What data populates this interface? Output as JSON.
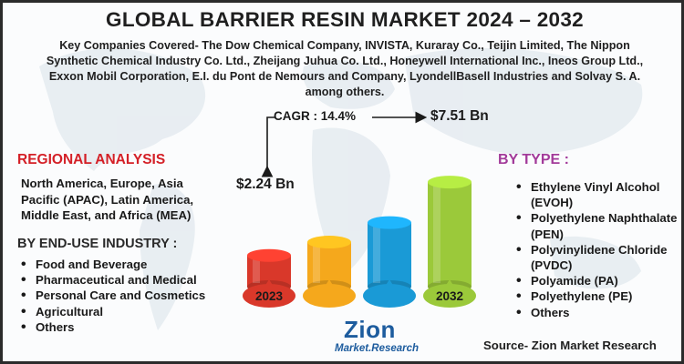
{
  "title": "GLOBAL BARRIER RESIN MARKET 2024 – 2032",
  "companies_line1": "Key Companies Covered- The Dow Chemical Company, INVISTA, Kuraray Co., Teijin Limited, The Nippon",
  "companies_line2": "Synthetic Chemical Industry Co. Ltd., Zheijang Juhua Co. Ltd., Honeywell International Inc., Ineos Group Ltd.,",
  "companies_line3": "Exxon Mobil Corporation, E.I. du Pont de Nemours and Company, LyondellBasell Industries and Solvay S. A.",
  "companies_line4": "among others.",
  "regional_analysis": {
    "heading": "REGIONAL ANALYSIS",
    "text": "North America, Europe, Asia Pacific (APAC), Latin America, Middle East, and Africa (MEA)"
  },
  "end_use": {
    "heading": "BY END-USE INDUSTRY :",
    "items": [
      "Food and Beverage",
      "Pharmaceutical and Medical",
      "Personal Care and Cosmetics",
      "Agricultural",
      "Others"
    ]
  },
  "by_type": {
    "heading": "BY TYPE :",
    "items": [
      "Ethylene Vinyl Alcohol (EVOH)",
      "Polyethylene Naphthalate (PEN)",
      "Polyvinylidene Chloride (PVDC)",
      "Polyamide (PA)",
      "Polyethylene (PE)",
      "Others"
    ]
  },
  "source": "Source- Zion Market Research",
  "logo": {
    "name": "Zion",
    "sub": "Market.Research"
  },
  "colors": {
    "regional_heading": "#d42027",
    "type_heading": "#a23a9a",
    "bars": [
      "#d9382a",
      "#f5a81c",
      "#1a9ad6",
      "#9bc93a"
    ],
    "logo": "#1d5c9e"
  },
  "chart_data": {
    "type": "bar",
    "categories": [
      "2023",
      "",
      "",
      "2032"
    ],
    "values": [
      2.24,
      3.2,
      4.6,
      7.51
    ],
    "value_labels": [
      "$2.24 Bn",
      "",
      "",
      "$7.51 Bn"
    ],
    "cagr": "CAGR : 14.4%",
    "ylim": [
      0,
      8
    ],
    "grid": false,
    "legend": "none"
  }
}
